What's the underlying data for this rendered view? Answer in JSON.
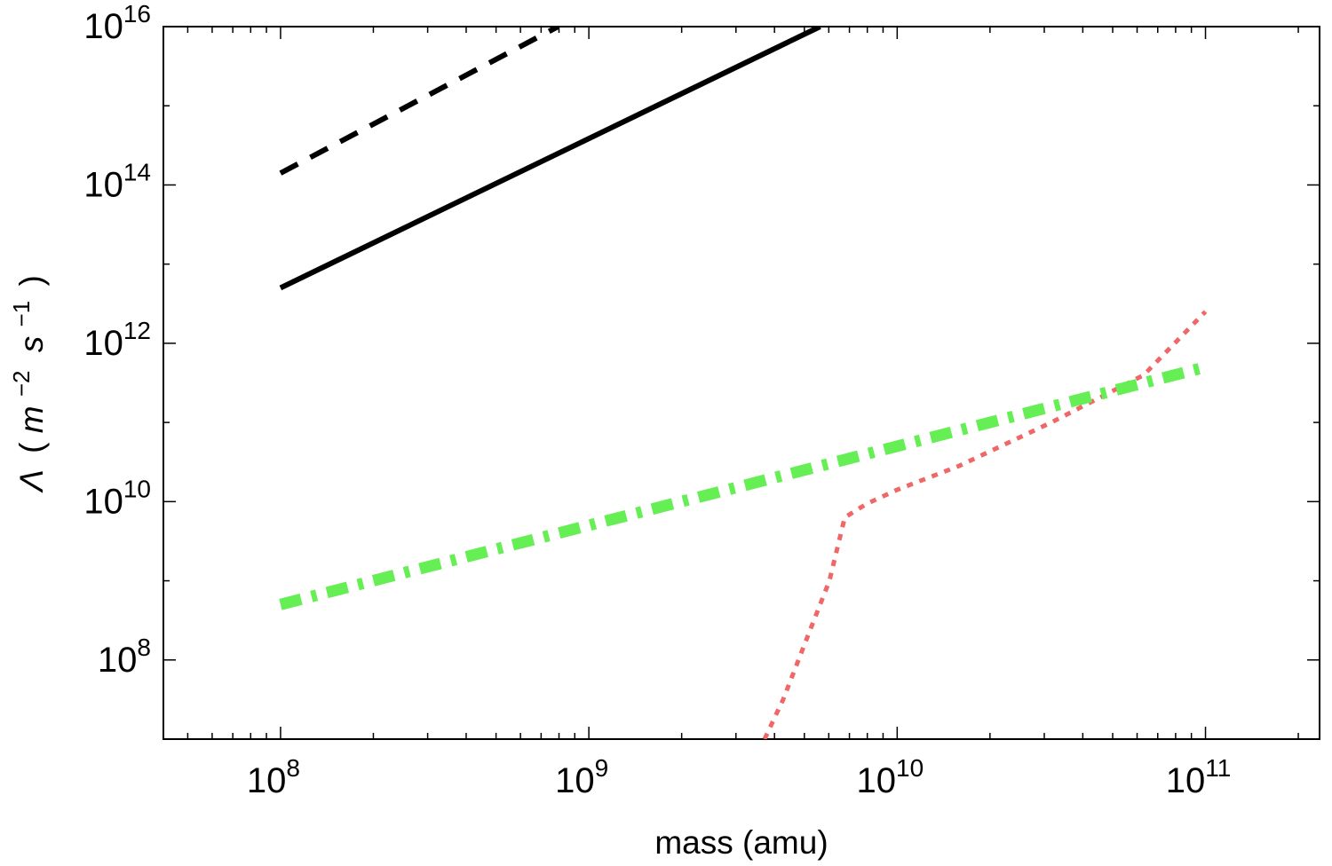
{
  "chart_data": {
    "type": "line",
    "title": "",
    "xlabel": "mass (amu)",
    "ylabel": {
      "symbol": "Λ",
      "open": "(",
      "m": "m",
      "m_exp": "−2",
      "s": "s",
      "s_exp": "−1",
      "close": ")"
    },
    "xscale": "log",
    "yscale": "log",
    "xlim_log10": [
      7.62,
      11.37
    ],
    "ylim_log10": [
      7.0,
      16.0
    ],
    "x_ticks": [
      {
        "base": "10",
        "exp": "8",
        "value_log10": 8
      },
      {
        "base": "10",
        "exp": "9",
        "value_log10": 9
      },
      {
        "base": "10",
        "exp": "10",
        "value_log10": 10
      },
      {
        "base": "10",
        "exp": "11",
        "value_log10": 11
      }
    ],
    "y_ticks": [
      {
        "base": "10",
        "exp": "8",
        "value_log10": 8
      },
      {
        "base": "10",
        "exp": "10",
        "value_log10": 10
      },
      {
        "base": "10",
        "exp": "12",
        "value_log10": 12
      },
      {
        "base": "10",
        "exp": "14",
        "value_log10": 14
      },
      {
        "base": "10",
        "exp": "16",
        "value_log10": 16
      }
    ],
    "legend": "none",
    "grid": false,
    "series": [
      {
        "name": "black-dashed",
        "color": "#000000",
        "style": "dashed",
        "points_log10": [
          [
            8.0,
            14.15
          ],
          [
            8.9,
            16.0
          ]
        ]
      },
      {
        "name": "black-solid",
        "color": "#000000",
        "style": "solid",
        "points_log10": [
          [
            8.0,
            12.7
          ],
          [
            9.75,
            16.0
          ]
        ]
      },
      {
        "name": "red-dotted",
        "color": "#f06767",
        "style": "dotted",
        "points_log10": [
          [
            9.57,
            7.0
          ],
          [
            9.63,
            7.5
          ],
          [
            9.71,
            8.3
          ],
          [
            9.78,
            9.0
          ],
          [
            9.83,
            9.8
          ],
          [
            9.9,
            9.97
          ],
          [
            10.0,
            10.15
          ],
          [
            10.2,
            10.45
          ],
          [
            10.5,
            11.0
          ],
          [
            10.8,
            11.6
          ],
          [
            11.0,
            12.4
          ]
        ]
      },
      {
        "name": "green-dash-dot",
        "color": "#66ee55",
        "style": "dashdot",
        "points_log10": [
          [
            8.0,
            8.7
          ],
          [
            11.0,
            11.7
          ]
        ]
      }
    ]
  }
}
